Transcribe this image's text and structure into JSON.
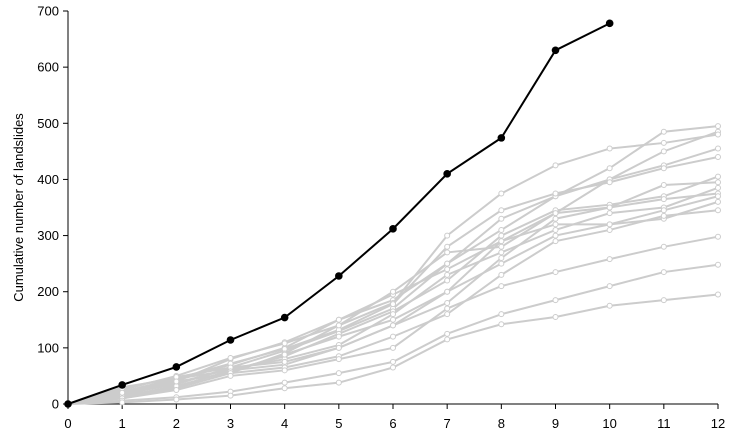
{
  "chart_data": {
    "type": "line",
    "title": "",
    "xlabel": "",
    "ylabel": "Cumulative number of landslides",
    "xlim": [
      0,
      12
    ],
    "ylim": [
      0,
      700
    ],
    "x_ticks": [
      "0",
      "1",
      "2",
      "3",
      "4",
      "5",
      "6",
      "7",
      "8",
      "9",
      "10",
      "11",
      "12"
    ],
    "y_ticks": [
      "0",
      "100",
      "200",
      "300",
      "400",
      "500",
      "600",
      "700"
    ],
    "grid": false,
    "legend": "none",
    "colors": {
      "highlight": "#000000",
      "background_series": "#cccccc",
      "axis": "#000000"
    },
    "highlight_series": {
      "x": [
        0,
        1,
        2,
        3,
        4,
        5,
        6,
        7,
        8,
        9,
        10
      ],
      "values": [
        0,
        34,
        66,
        114,
        154,
        228,
        312,
        410,
        474,
        630,
        678
      ]
    },
    "series": [
      {
        "values": [
          0,
          20,
          42,
          70,
          100,
          150,
          185,
          250,
          310,
          370,
          420,
          485,
          495
        ]
      },
      {
        "values": [
          0,
          15,
          40,
          80,
          110,
          150,
          195,
          240,
          290,
          340,
          400,
          450,
          485
        ]
      },
      {
        "values": [
          0,
          25,
          50,
          82,
          108,
          140,
          180,
          300,
          375,
          425,
          455,
          465,
          480
        ]
      },
      {
        "values": [
          0,
          18,
          35,
          65,
          95,
          130,
          170,
          250,
          330,
          370,
          400,
          425,
          455
        ]
      },
      {
        "values": [
          0,
          22,
          45,
          72,
          98,
          132,
          178,
          280,
          345,
          375,
          395,
          420,
          440
        ]
      },
      {
        "values": [
          0,
          12,
          30,
          60,
          85,
          125,
          165,
          220,
          300,
          345,
          355,
          370,
          405
        ]
      },
      {
        "values": [
          0,
          10,
          28,
          55,
          90,
          140,
          200,
          270,
          280,
          340,
          350,
          390,
          395
        ]
      },
      {
        "values": [
          0,
          16,
          38,
          62,
          80,
          105,
          160,
          230,
          270,
          310,
          340,
          350,
          385
        ]
      },
      {
        "values": [
          0,
          30,
          45,
          60,
          70,
          100,
          140,
          180,
          260,
          330,
          350,
          365,
          375
        ]
      },
      {
        "values": [
          0,
          28,
          48,
          65,
          75,
          100,
          140,
          200,
          250,
          300,
          320,
          345,
          370
        ]
      },
      {
        "values": [
          0,
          14,
          32,
          58,
          88,
          120,
          150,
          200,
          290,
          320,
          320,
          330,
          360
        ]
      },
      {
        "values": [
          0,
          20,
          40,
          55,
          65,
          85,
          120,
          160,
          230,
          290,
          310,
          335,
          345
        ]
      },
      {
        "values": [
          0,
          10,
          25,
          50,
          60,
          80,
          100,
          170,
          210,
          235,
          258,
          280,
          298
        ]
      },
      {
        "values": [
          0,
          6,
          12,
          22,
          38,
          55,
          75,
          125,
          160,
          185,
          210,
          235,
          248
        ]
      },
      {
        "values": [
          0,
          3,
          8,
          15,
          28,
          38,
          65,
          115,
          142,
          155,
          175,
          185,
          195
        ]
      }
    ]
  }
}
